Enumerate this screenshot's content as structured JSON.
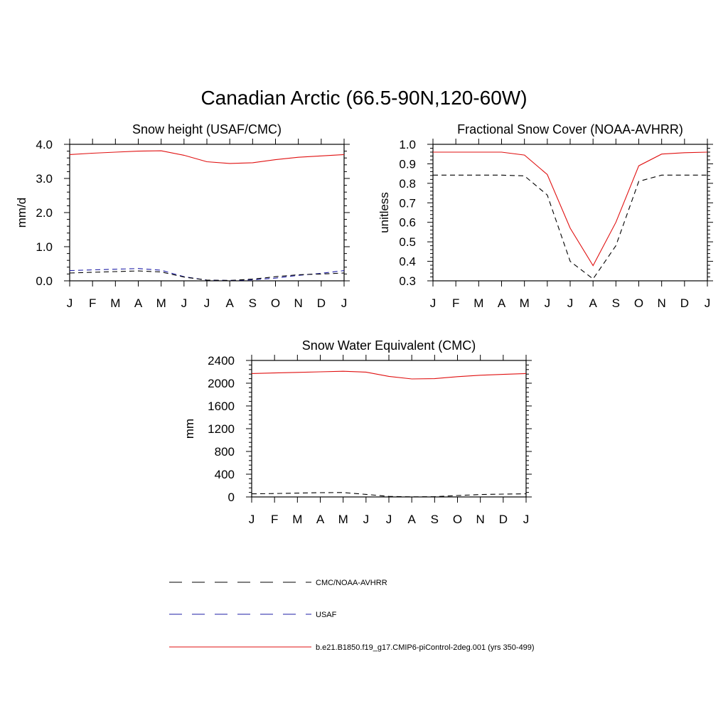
{
  "page": {
    "title": "Canadian Arctic (66.5-90N,120-60W)"
  },
  "colors": {
    "cmc": "#000000",
    "usaf": "#1f1fa6",
    "model": "#e01010"
  },
  "legend": {
    "entries": [
      {
        "key": "cmc",
        "label": "CMC/NOAA-AVHRR"
      },
      {
        "key": "usaf",
        "label": "USAF"
      },
      {
        "key": "model",
        "label": "b.e21.B1850.f19_g17.CMIP6-piControl-2deg.001 (yrs 350-499)"
      }
    ]
  },
  "chart_data": [
    {
      "type": "line",
      "title": "Snow height (USAF/CMC)",
      "ylabel": "mm/d",
      "xlabel": "",
      "x": [
        "J",
        "F",
        "M",
        "A",
        "M",
        "J",
        "J",
        "A",
        "S",
        "O",
        "N",
        "D",
        "J"
      ],
      "ylim": [
        0,
        4
      ],
      "yticks": [
        0,
        1,
        2,
        3,
        4
      ],
      "ytick_labels": [
        "0.0",
        "1.0",
        "2.0",
        "3.0",
        "4.0"
      ],
      "grid": false,
      "series": [
        {
          "key": "model",
          "style": "solid",
          "values": [
            3.7,
            3.74,
            3.77,
            3.8,
            3.81,
            3.68,
            3.49,
            3.44,
            3.46,
            3.55,
            3.62,
            3.66,
            3.7
          ]
        },
        {
          "key": "usaf",
          "style": "dashed",
          "values": [
            0.3,
            0.32,
            0.34,
            0.36,
            0.31,
            0.12,
            0.02,
            0.01,
            0.03,
            0.08,
            0.16,
            0.22,
            0.3
          ]
        },
        {
          "key": "cmc",
          "style": "dashed",
          "values": [
            0.23,
            0.25,
            0.27,
            0.29,
            0.26,
            0.11,
            0.02,
            0.01,
            0.05,
            0.12,
            0.18,
            0.2,
            0.23
          ]
        }
      ]
    },
    {
      "type": "line",
      "title": "Fractional Snow Cover (NOAA-AVHRR)",
      "ylabel": "unitless",
      "xlabel": "",
      "x": [
        "J",
        "F",
        "M",
        "A",
        "M",
        "J",
        "J",
        "A",
        "S",
        "O",
        "N",
        "D",
        "J"
      ],
      "ylim": [
        0.3,
        1.0
      ],
      "yticks": [
        0.3,
        0.4,
        0.5,
        0.6,
        0.7,
        0.8,
        0.9,
        1.0
      ],
      "ytick_labels": [
        "0.3",
        "0.4",
        "0.5",
        "0.6",
        "0.7",
        "0.8",
        "0.9",
        "1.0"
      ],
      "grid": false,
      "series": [
        {
          "key": "model",
          "style": "solid",
          "values": [
            0.96,
            0.96,
            0.96,
            0.96,
            0.945,
            0.845,
            0.57,
            0.378,
            0.6,
            0.89,
            0.95,
            0.957,
            0.96
          ]
        },
        {
          "key": "cmc",
          "style": "dashed",
          "values": [
            0.842,
            0.842,
            0.842,
            0.842,
            0.838,
            0.74,
            0.4,
            0.31,
            0.48,
            0.81,
            0.842,
            0.842,
            0.842
          ]
        }
      ]
    },
    {
      "type": "line",
      "title": "Snow Water Equivalent (CMC)",
      "ylabel": "mm",
      "xlabel": "",
      "x": [
        "J",
        "F",
        "M",
        "A",
        "M",
        "J",
        "J",
        "A",
        "S",
        "O",
        "N",
        "D",
        "J"
      ],
      "ylim": [
        0,
        2400
      ],
      "yticks": [
        0,
        400,
        800,
        1200,
        1600,
        2000,
        2400
      ],
      "ytick_labels": [
        "0",
        "400",
        "800",
        "1200",
        "1600",
        "2000",
        "2400"
      ],
      "grid": false,
      "series": [
        {
          "key": "model",
          "style": "solid",
          "values": [
            2170,
            2180,
            2190,
            2200,
            2210,
            2195,
            2120,
            2075,
            2080,
            2115,
            2140,
            2155,
            2170
          ]
        },
        {
          "key": "cmc",
          "style": "dashed",
          "values": [
            55,
            60,
            68,
            75,
            78,
            45,
            10,
            2,
            5,
            25,
            42,
            50,
            55
          ]
        }
      ]
    }
  ]
}
